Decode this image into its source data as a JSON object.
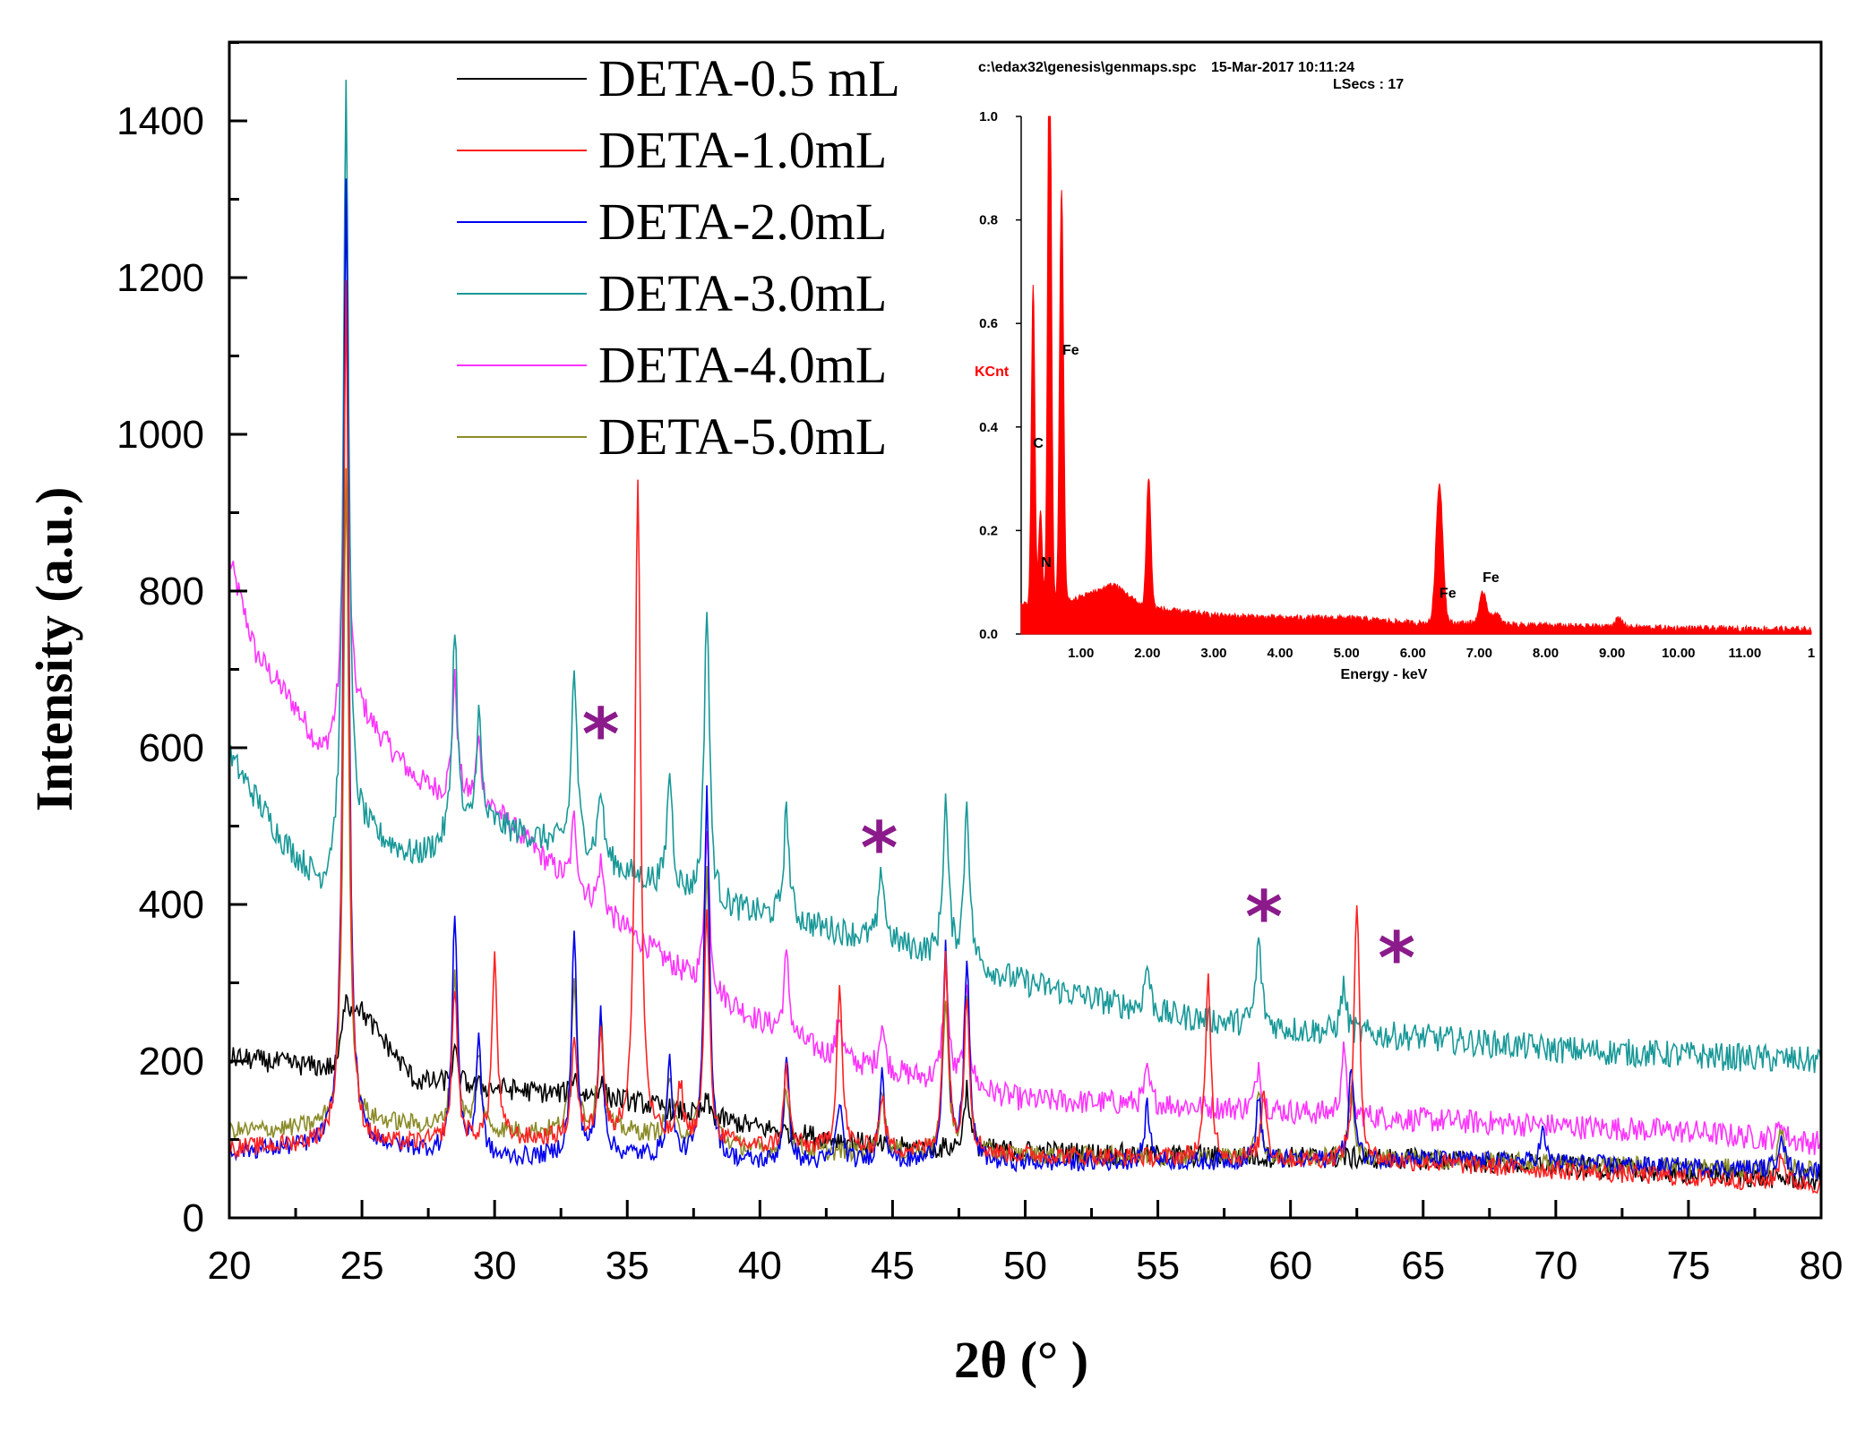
{
  "chart_data": {
    "type": "line",
    "title": "",
    "xlabel": "2θ (° )",
    "ylabel": "Intensity (a.u.)",
    "xlim": [
      20,
      80
    ],
    "ylim": [
      0,
      1500
    ],
    "xticks": [
      "20",
      "25",
      "30",
      "35",
      "40",
      "45",
      "50",
      "55",
      "60",
      "65",
      "70",
      "75",
      "80"
    ],
    "yticks": [
      "0",
      "200",
      "400",
      "600",
      "800",
      "1000",
      "1200",
      "1400"
    ],
    "legend_position": "top-center",
    "star_positions": [
      34.0,
      44.5,
      59.0,
      64.0
    ],
    "star_symbol": "*",
    "series": [
      {
        "name": "DETA-0.5 mL",
        "color": "#000000",
        "baseline": [
          [
            20,
            205
          ],
          [
            24,
            190
          ],
          [
            24.8,
            270
          ],
          [
            27,
            175
          ],
          [
            35,
            150
          ],
          [
            40,
            115
          ],
          [
            45,
            90
          ],
          [
            55,
            80
          ],
          [
            65,
            75
          ],
          [
            80,
            48
          ]
        ],
        "peaks": [
          [
            24.4,
            60
          ],
          [
            28.5,
            40
          ],
          [
            33.0,
            25
          ],
          [
            34.0,
            20
          ],
          [
            38.0,
            20
          ],
          [
            47.8,
            80
          ]
        ],
        "noise": 14
      },
      {
        "name": "DETA-1.0mL",
        "color": "#ff2020",
        "baseline": [
          [
            20,
            88
          ],
          [
            24,
            95
          ],
          [
            26,
            92
          ],
          [
            30,
            100
          ],
          [
            35,
            100
          ],
          [
            40,
            90
          ],
          [
            50,
            80
          ],
          [
            65,
            70
          ],
          [
            80,
            42
          ]
        ],
        "peaks": [
          [
            24.4,
            1100
          ],
          [
            28.5,
            200
          ],
          [
            30.0,
            230
          ],
          [
            33.0,
            130
          ],
          [
            34.0,
            140
          ],
          [
            35.4,
            850
          ],
          [
            37.0,
            70
          ],
          [
            38.0,
            300
          ],
          [
            41.0,
            100
          ],
          [
            43.0,
            210
          ],
          [
            44.6,
            70
          ],
          [
            47.0,
            250
          ],
          [
            47.8,
            200
          ],
          [
            56.9,
            230
          ],
          [
            59.0,
            90
          ],
          [
            62.5,
            330
          ],
          [
            78.5,
            40
          ]
        ],
        "noise": 12
      },
      {
        "name": "DETA-2.0mL",
        "color": "#0000ee",
        "baseline": [
          [
            20,
            85
          ],
          [
            24,
            90
          ],
          [
            26,
            90
          ],
          [
            30,
            75
          ],
          [
            35,
            80
          ],
          [
            40,
            70
          ],
          [
            50,
            70
          ],
          [
            65,
            75
          ],
          [
            80,
            60
          ]
        ],
        "peaks": [
          [
            24.4,
            1240
          ],
          [
            28.5,
            310
          ],
          [
            29.4,
            150
          ],
          [
            33.0,
            280
          ],
          [
            34.0,
            180
          ],
          [
            36.6,
            120
          ],
          [
            38.0,
            480
          ],
          [
            41.0,
            130
          ],
          [
            43.0,
            80
          ],
          [
            44.6,
            120
          ],
          [
            47.0,
            270
          ],
          [
            47.8,
            260
          ],
          [
            54.6,
            70
          ],
          [
            58.8,
            80
          ],
          [
            62.3,
            120
          ],
          [
            69.5,
            40
          ],
          [
            78.5,
            50
          ]
        ],
        "noise": 12
      },
      {
        "name": "DETA-3.0mL",
        "color": "#189898",
        "baseline": [
          [
            20,
            590
          ],
          [
            22,
            480
          ],
          [
            23.5,
            420
          ],
          [
            25,
            490
          ],
          [
            27,
            460
          ],
          [
            30,
            500
          ],
          [
            33,
            470
          ],
          [
            35,
            440
          ],
          [
            38,
            400
          ],
          [
            41,
            380
          ],
          [
            45,
            350
          ],
          [
            50,
            300
          ],
          [
            55,
            260
          ],
          [
            60,
            240
          ],
          [
            65,
            230
          ],
          [
            70,
            215
          ],
          [
            80,
            200
          ]
        ],
        "peaks": [
          [
            24.4,
            980
          ],
          [
            28.5,
            270
          ],
          [
            29.4,
            150
          ],
          [
            33.0,
            230
          ],
          [
            34.0,
            90
          ],
          [
            36.6,
            150
          ],
          [
            38.0,
            380
          ],
          [
            41.0,
            140
          ],
          [
            44.6,
            90
          ],
          [
            47.0,
            200
          ],
          [
            47.8,
            210
          ],
          [
            54.6,
            60
          ],
          [
            58.8,
            110
          ],
          [
            62.0,
            60
          ]
        ],
        "noise": 18
      },
      {
        "name": "DETA-4.0mL",
        "color": "#ff33ff",
        "baseline": [
          [
            20,
            840
          ],
          [
            21,
            720
          ],
          [
            22.5,
            650
          ],
          [
            23.5,
            590
          ],
          [
            25,
            640
          ],
          [
            27,
            560
          ],
          [
            28,
            540
          ],
          [
            30,
            520
          ],
          [
            33,
            420
          ],
          [
            36,
            340
          ],
          [
            38,
            290
          ],
          [
            40,
            250
          ],
          [
            43,
            200
          ],
          [
            50,
            150
          ],
          [
            55,
            145
          ],
          [
            65,
            125
          ],
          [
            75,
            110
          ],
          [
            80,
            95
          ]
        ],
        "peaks": [
          [
            24.4,
            560
          ],
          [
            28.5,
            150
          ],
          [
            29.4,
            80
          ],
          [
            33.0,
            90
          ],
          [
            34.0,
            60
          ],
          [
            38.0,
            200
          ],
          [
            41.0,
            100
          ],
          [
            43.0,
            60
          ],
          [
            44.6,
            60
          ],
          [
            47.0,
            150
          ],
          [
            47.8,
            120
          ],
          [
            54.6,
            40
          ],
          [
            58.8,
            60
          ],
          [
            62.0,
            80
          ],
          [
            78.5,
            25
          ]
        ],
        "noise": 16
      },
      {
        "name": "DETA-5.0mL",
        "color": "#8b8b28",
        "baseline": [
          [
            20,
            110
          ],
          [
            24,
            115
          ],
          [
            26,
            120
          ],
          [
            30,
            110
          ],
          [
            35,
            110
          ],
          [
            40,
            85
          ],
          [
            50,
            80
          ],
          [
            65,
            75
          ],
          [
            80,
            60
          ]
        ],
        "peaks": [
          [
            24.4,
            850
          ],
          [
            28.5,
            200
          ],
          [
            29.4,
            100
          ],
          [
            33.0,
            200
          ],
          [
            34.0,
            150
          ],
          [
            36.6,
            80
          ],
          [
            38.0,
            350
          ],
          [
            41.0,
            80
          ],
          [
            44.6,
            80
          ],
          [
            47.0,
            200
          ],
          [
            47.8,
            200
          ],
          [
            58.8,
            80
          ],
          [
            62.3,
            90
          ],
          [
            78.5,
            50
          ]
        ],
        "noise": 12
      }
    ],
    "inset": {
      "type": "bar",
      "header_path": "c:\\edax32\\genesis\\genmaps.spc",
      "header_date": "15-Mar-2017 10:11:24",
      "header_lsecs": "LSecs : 17",
      "ylabel": "KCnt",
      "xlabel": "Energy - keV",
      "xlim": [
        0,
        12
      ],
      "ylim": [
        0,
        1.0
      ],
      "yticks": [
        "0.0",
        "0.2",
        "0.4",
        "0.6",
        "0.8",
        "1.0"
      ],
      "xticks": [
        "1.00",
        "2.00",
        "3.00",
        "4.00",
        "5.00",
        "6.00",
        "7.00",
        "8.00",
        "9.00",
        "10.00",
        "11.00",
        "1"
      ],
      "color": "#ff0000",
      "element_labels": [
        {
          "text": "Fe",
          "x": 0.72,
          "y": 0.54
        },
        {
          "text": "C",
          "x": 0.28,
          "y": 0.36
        },
        {
          "text": "N",
          "x": 0.4,
          "y": 0.13
        },
        {
          "text": "Fe",
          "x": 6.4,
          "y": 0.07
        },
        {
          "text": "Fe",
          "x": 7.05,
          "y": 0.1
        }
      ],
      "peaks": [
        [
          0.28,
          0.62
        ],
        [
          0.39,
          0.18
        ],
        [
          0.52,
          0.28
        ],
        [
          0.53,
          0.9
        ],
        [
          0.7,
          0.5
        ],
        [
          0.72,
          0.35
        ],
        [
          2.02,
          0.25
        ],
        [
          6.4,
          0.27
        ],
        [
          7.06,
          0.06
        ],
        [
          7.25,
          0.02
        ],
        [
          9.1,
          0.015
        ]
      ],
      "baseline": [
        [
          0.1,
          0.05
        ],
        [
          0.9,
          0.06
        ],
        [
          1.5,
          0.09
        ],
        [
          1.9,
          0.05
        ],
        [
          2.3,
          0.04
        ],
        [
          3,
          0.03
        ],
        [
          4,
          0.025
        ],
        [
          5,
          0.025
        ],
        [
          6,
          0.015
        ],
        [
          7,
          0.015
        ],
        [
          8,
          0.01
        ],
        [
          9,
          0.008
        ],
        [
          10,
          0.005
        ],
        [
          12,
          0.003
        ]
      ]
    }
  }
}
